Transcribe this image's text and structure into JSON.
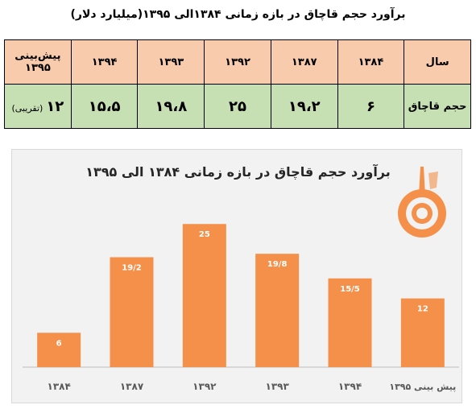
{
  "page": {
    "title": "برآورد حجم قاچاق در بازه زمانی ۱۳۸۴الی ۱۳۹۵(میلیارد دلار)"
  },
  "table": {
    "header_label": "سال",
    "value_label": "حجم قاچاق",
    "years": [
      "۱۳۸۴",
      "۱۳۸۷",
      "۱۳۹۲",
      "۱۳۹۳",
      "۱۳۹۴",
      "پیش‌بینی ۱۳۹۵"
    ],
    "values": [
      "۶",
      "۱۹،۲",
      "۲۵",
      "۱۹،۸",
      "۱۵،۵",
      "۱۲"
    ],
    "estimate_note": "(تقریبی)"
  },
  "chart_data": {
    "type": "bar",
    "title": "برآورد حجم قاچاق در بازه زمانی ۱۳۸۴ الی ۱۳۹۵",
    "categories": [
      "۱۳۸۴",
      "۱۳۸۷",
      "۱۳۹۲",
      "۱۳۹۳",
      "۱۳۹۴",
      "پیش بینی ۱۳۹۵"
    ],
    "values": [
      6,
      19.2,
      25,
      19.8,
      15.5,
      12
    ],
    "data_labels": [
      "6",
      "19/2",
      "25",
      "19/8",
      "15/5",
      "12"
    ],
    "xlabel": "",
    "ylabel": "",
    "ylim": [
      0,
      27
    ],
    "grid": false,
    "legend": "none",
    "bar_color": "#f4904a",
    "label_color": "#ffffff"
  },
  "colors": {
    "table_header": "#f8cbad",
    "table_values": "#c6e0b4",
    "chart_background": "#f2f2f2",
    "logo": "#f4904a"
  },
  "icons": {
    "logo": "institution-logo-icon"
  }
}
